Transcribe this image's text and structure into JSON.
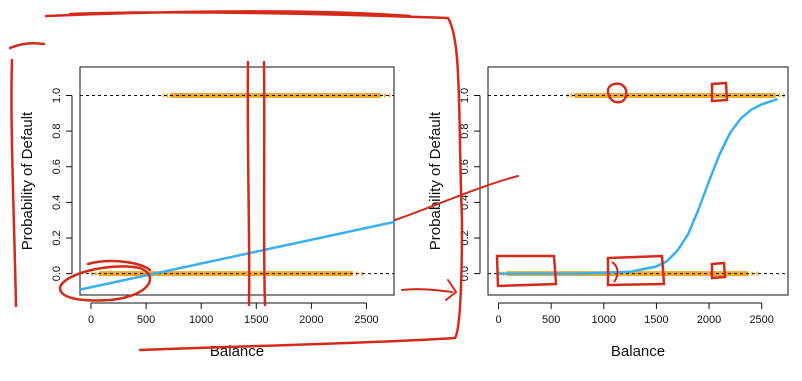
{
  "colors": {
    "points": "#f0a11a",
    "fit_line": "#36b0ee",
    "annotation": "#d42a1a",
    "axis": "#111111",
    "reference": "#111111"
  },
  "chart_data": [
    {
      "type": "scatter",
      "subtype": "linear regression fit",
      "xlabel": "Balance",
      "ylabel": "Probability of Default",
      "xlim": [
        -100,
        2750
      ],
      "ylim": [
        -0.12,
        1.16
      ],
      "x_ticks": [
        0,
        500,
        1000,
        1500,
        2000,
        2500
      ],
      "y_ticks": [
        0.0,
        0.2,
        0.4,
        0.6,
        0.8,
        1.0
      ],
      "x_tick_labels": [
        "0",
        "500",
        "1000",
        "1500",
        "2000",
        "2500"
      ],
      "y_tick_labels": [
        "0.0",
        "0.2",
        "0.4",
        "0.6",
        "0.8",
        "1.0"
      ],
      "reference_lines": [
        0,
        1
      ],
      "grid": false,
      "points_y0_range": [
        0,
        2450
      ],
      "points_y1_range": [
        650,
        2700
      ],
      "line": {
        "x": [
          -100,
          2750
        ],
        "y": [
          -0.09,
          0.29
        ]
      }
    },
    {
      "type": "scatter",
      "subtype": "logistic regression fit",
      "xlabel": "Balance",
      "ylabel": "Probability of Default",
      "xlim": [
        -100,
        2750
      ],
      "ylim": [
        -0.12,
        1.16
      ],
      "x_ticks": [
        0,
        500,
        1000,
        1500,
        2000,
        2500
      ],
      "y_ticks": [
        0.0,
        0.2,
        0.4,
        0.6,
        0.8,
        1.0
      ],
      "x_tick_labels": [
        "0",
        "500",
        "1000",
        "1500",
        "2000",
        "2500"
      ],
      "y_tick_labels": [
        "0.0",
        "0.2",
        "0.4",
        "0.6",
        "0.8",
        "1.0"
      ],
      "reference_lines": [
        0,
        1
      ],
      "grid": false,
      "points_y0_range": [
        0,
        2450
      ],
      "points_y1_range": [
        650,
        2700
      ],
      "curve": {
        "x": [
          0,
          250,
          500,
          750,
          1000,
          1250,
          1500,
          1600,
          1700,
          1800,
          1900,
          2000,
          2100,
          2200,
          2300,
          2400,
          2500,
          2650
        ],
        "y": [
          0.0,
          0.0,
          0.0,
          0.0,
          0.005,
          0.01,
          0.04,
          0.07,
          0.13,
          0.22,
          0.36,
          0.52,
          0.67,
          0.79,
          0.87,
          0.92,
          0.95,
          0.98
        ]
      }
    }
  ]
}
